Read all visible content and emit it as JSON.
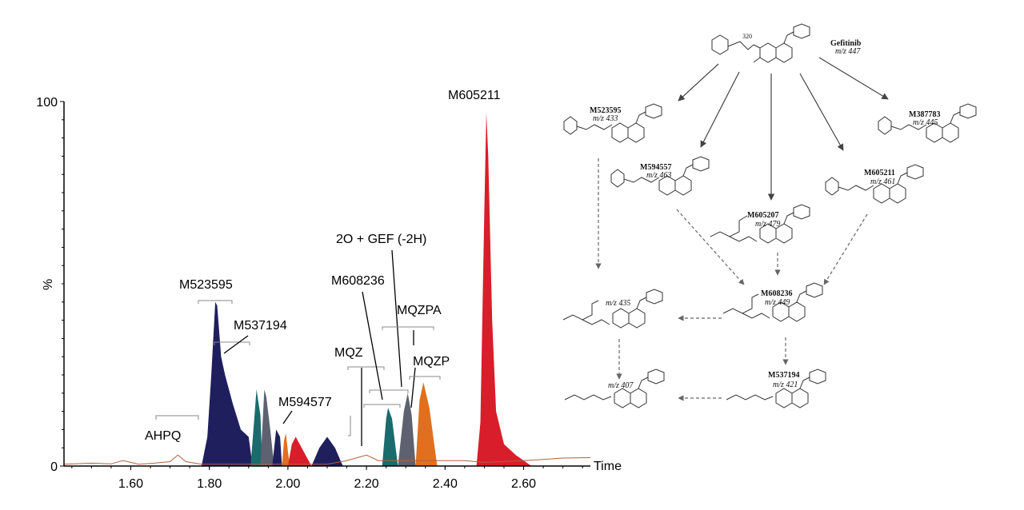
{
  "chart_data": {
    "type": "area",
    "xlabel": "Time",
    "ylabel": "%",
    "xlim": [
      1.43,
      2.77
    ],
    "ylim": [
      0,
      100
    ],
    "xticks": [
      "1.60",
      "1.80",
      "2.00",
      "2.20",
      "2.40",
      "2.60"
    ],
    "xtick_values": [
      1.6,
      1.8,
      2.0,
      2.2,
      2.4,
      2.6
    ],
    "yticks": [
      "0",
      "100"
    ],
    "ytick_values": [
      0,
      100
    ],
    "baseline": [
      [
        1.43,
        0.5
      ],
      [
        1.5,
        0.8
      ],
      [
        1.55,
        0.6
      ],
      [
        1.58,
        1.5
      ],
      [
        1.62,
        0.5
      ],
      [
        1.66,
        0.8
      ],
      [
        1.7,
        1.2
      ],
      [
        1.72,
        3
      ],
      [
        1.74,
        1.2
      ],
      [
        1.78,
        0.5
      ],
      [
        2.1,
        0.5
      ],
      [
        2.15,
        1.5
      ],
      [
        2.2,
        3
      ],
      [
        2.23,
        1.5
      ],
      [
        2.45,
        1.5
      ],
      [
        2.5,
        1
      ],
      [
        2.6,
        1.5
      ],
      [
        2.65,
        1.8
      ],
      [
        2.7,
        2.2
      ],
      [
        2.77,
        2.3
      ]
    ],
    "peaks": [
      {
        "color": "#1f1f5e",
        "points": [
          [
            1.78,
            0
          ],
          [
            1.795,
            8
          ],
          [
            1.805,
            25
          ],
          [
            1.815,
            45
          ],
          [
            1.82,
            44
          ],
          [
            1.83,
            30
          ],
          [
            1.84,
            25
          ],
          [
            1.86,
            17
          ],
          [
            1.88,
            10
          ],
          [
            1.9,
            8
          ],
          [
            1.91,
            0
          ]
        ]
      },
      {
        "color": "#1a6b6d",
        "points": [
          [
            1.905,
            0
          ],
          [
            1.915,
            14
          ],
          [
            1.92,
            21
          ],
          [
            1.93,
            14
          ],
          [
            1.935,
            0
          ]
        ]
      },
      {
        "color": "#5e6270",
        "points": [
          [
            1.93,
            0
          ],
          [
            1.94,
            21
          ],
          [
            1.945,
            19
          ],
          [
            1.955,
            10
          ],
          [
            1.965,
            0
          ]
        ]
      },
      {
        "color": "#1f1f5e",
        "points": [
          [
            1.96,
            0
          ],
          [
            1.97,
            10
          ],
          [
            1.98,
            8
          ],
          [
            1.985,
            0
          ]
        ]
      },
      {
        "color": "#e07020",
        "points": [
          [
            1.985,
            0
          ],
          [
            1.99,
            7
          ],
          [
            1.995,
            9
          ],
          [
            2.0,
            4
          ],
          [
            2.005,
            0
          ]
        ]
      },
      {
        "color": "#d81e2a",
        "points": [
          [
            2.0,
            0
          ],
          [
            2.01,
            6
          ],
          [
            2.02,
            8
          ],
          [
            2.04,
            4
          ],
          [
            2.06,
            0
          ]
        ]
      },
      {
        "color": "#1f1f5e",
        "points": [
          [
            2.06,
            0
          ],
          [
            2.08,
            5
          ],
          [
            2.1,
            8
          ],
          [
            2.12,
            5
          ],
          [
            2.14,
            0
          ]
        ]
      },
      {
        "color": "#1a6b6d",
        "points": [
          [
            2.24,
            0
          ],
          [
            2.25,
            13
          ],
          [
            2.255,
            16
          ],
          [
            2.265,
            13
          ],
          [
            2.28,
            0
          ]
        ]
      },
      {
        "color": "#5e6270",
        "points": [
          [
            2.28,
            0
          ],
          [
            2.295,
            15
          ],
          [
            2.305,
            20
          ],
          [
            2.315,
            14
          ],
          [
            2.325,
            0
          ]
        ]
      },
      {
        "color": "#e07020",
        "points": [
          [
            2.325,
            0
          ],
          [
            2.335,
            18
          ],
          [
            2.345,
            23
          ],
          [
            2.36,
            16
          ],
          [
            2.38,
            0
          ]
        ]
      },
      {
        "color": "#d81e2a",
        "points": [
          [
            2.48,
            0
          ],
          [
            2.49,
            12
          ],
          [
            2.5,
            70
          ],
          [
            2.505,
            97
          ],
          [
            2.51,
            85
          ],
          [
            2.52,
            40
          ],
          [
            2.53,
            15
          ],
          [
            2.55,
            6
          ],
          [
            2.58,
            3
          ],
          [
            2.62,
            0
          ]
        ]
      }
    ],
    "labels": [
      "AHPQ",
      "M523595",
      "M537194",
      "M594577",
      "MQZ",
      "M608236",
      "2O + GEF (-2H)",
      "MQZPA",
      "MQZP",
      "M605211"
    ]
  },
  "scheme": {
    "compounds": [
      {
        "name": "Gefitinib",
        "mz": "m/z 447"
      },
      {
        "name": "M523595",
        "mz": "m/z 433"
      },
      {
        "name": "M387783",
        "mz": "m/z 445"
      },
      {
        "name": "M594557",
        "mz": "m/z 463"
      },
      {
        "name": "M605211",
        "mz": "m/z 461"
      },
      {
        "name": "M605207",
        "mz": "m/z 479"
      },
      {
        "name": "M608236",
        "mz": "m/z 449"
      },
      {
        "name": "",
        "mz": "m/z 435"
      },
      {
        "name": "M537194",
        "mz": "m/z 421"
      },
      {
        "name": "",
        "mz": "m/z 407"
      }
    ],
    "fragment_label": "320"
  }
}
